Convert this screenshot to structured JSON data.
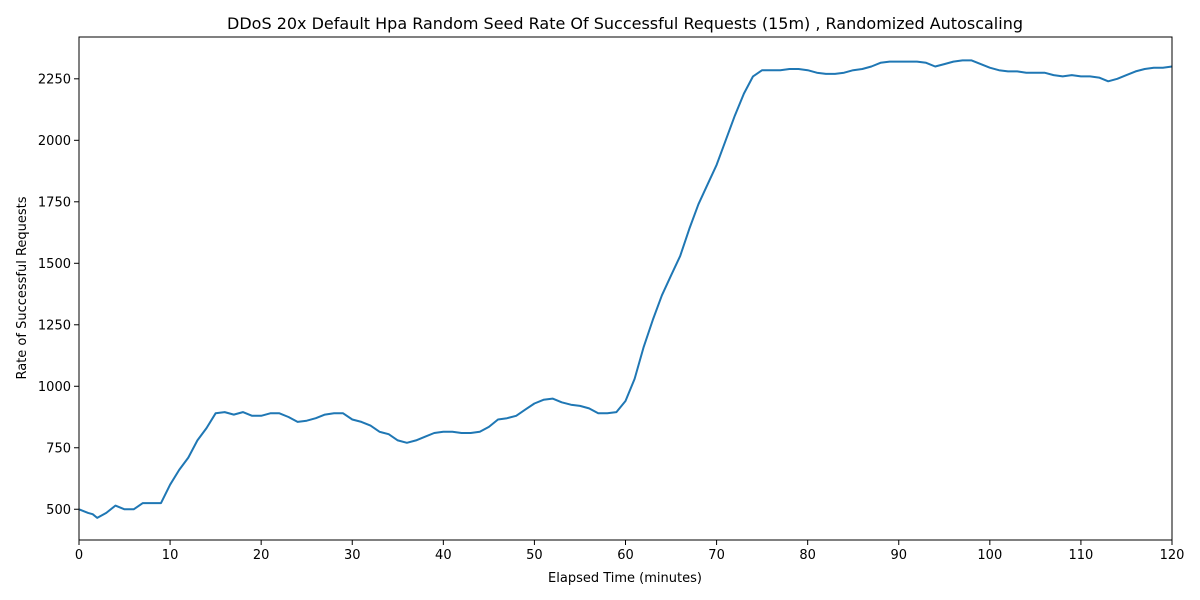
{
  "chart_data": {
    "type": "line",
    "title": "DDoS 20x Default Hpa Random Seed Rate Of Successful Requests (15m) , Randomized Autoscaling",
    "xlabel": "Elapsed Time (minutes)",
    "ylabel": "Rate of Successful Requests",
    "xlim": [
      0,
      120
    ],
    "ylim": [
      375,
      2420
    ],
    "xticks": [
      0,
      10,
      20,
      30,
      40,
      50,
      60,
      70,
      80,
      90,
      100,
      110,
      120
    ],
    "yticks": [
      500,
      750,
      1000,
      1250,
      1500,
      1750,
      2000,
      2250
    ],
    "grid": false,
    "legend": "none",
    "colors": {
      "line": "#1f77b4",
      "axes": "#000000",
      "background": "#ffffff"
    },
    "series": [
      {
        "x": [
          0,
          1,
          1.5,
          2,
          3,
          4,
          5,
          6,
          7,
          8,
          9,
          10,
          11,
          12,
          13,
          14,
          15,
          16,
          17,
          18,
          19,
          20,
          21,
          22,
          23,
          24,
          25,
          26,
          27,
          28,
          29,
          30,
          31,
          32,
          33,
          34,
          35,
          36,
          37,
          38,
          39,
          40,
          41,
          42,
          43,
          44,
          45,
          46,
          47,
          48,
          49,
          50,
          51,
          52,
          53,
          54,
          55,
          56,
          57,
          58,
          59,
          60,
          61,
          62,
          63,
          64,
          65,
          66,
          67,
          68,
          69,
          70,
          71,
          72,
          73,
          74,
          75,
          76,
          77,
          78,
          79,
          80,
          81,
          82,
          83,
          84,
          85,
          86,
          87,
          88,
          89,
          90,
          91,
          92,
          93,
          94,
          95,
          96,
          97,
          98,
          99,
          100,
          101,
          102,
          103,
          104,
          105,
          106,
          107,
          108,
          109,
          110,
          111,
          112,
          113,
          114,
          115,
          116,
          117,
          118,
          119,
          120
        ],
        "y": [
          500,
          485,
          480,
          465,
          485,
          515,
          500,
          500,
          525,
          525,
          525,
          600,
          660,
          710,
          780,
          830,
          890,
          895,
          885,
          895,
          880,
          880,
          890,
          890,
          875,
          855,
          860,
          870,
          885,
          890,
          890,
          865,
          855,
          840,
          815,
          805,
          780,
          770,
          780,
          795,
          810,
          815,
          815,
          810,
          810,
          815,
          835,
          865,
          870,
          880,
          905,
          930,
          945,
          950,
          935,
          925,
          920,
          910,
          890,
          890,
          895,
          940,
          1030,
          1160,
          1270,
          1370,
          1450,
          1530,
          1640,
          1740,
          1820,
          1900,
          2000,
          2100,
          2190,
          2260,
          2285,
          2285,
          2285,
          2290,
          2290,
          2285,
          2275,
          2270,
          2270,
          2275,
          2285,
          2290,
          2300,
          2315,
          2320,
          2320,
          2320,
          2320,
          2315,
          2300,
          2310,
          2320,
          2325,
          2325,
          2310,
          2295,
          2285,
          2280,
          2280,
          2275,
          2275,
          2275,
          2265,
          2260,
          2265,
          2260,
          2260,
          2255,
          2240,
          2250,
          2265,
          2280,
          2290,
          2295,
          2295,
          2300
        ]
      }
    ]
  }
}
